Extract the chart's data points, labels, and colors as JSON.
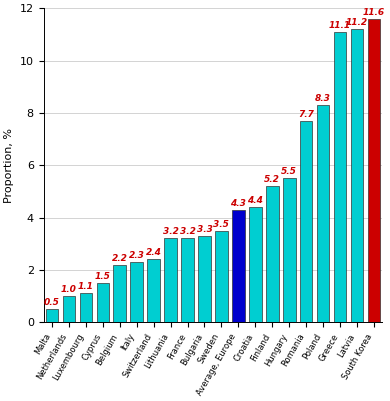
{
  "categories": [
    "Malta",
    "Netherlands",
    "Luxembourg",
    "Cyprus",
    "Belgium",
    "Italy",
    "Switzerland",
    "Lithuania",
    "France",
    "Bulgaria",
    "Sweden",
    "Average, Europe",
    "Croatia",
    "Finland",
    "Hungary",
    "Romania",
    "Poland",
    "Greece",
    "Latvia",
    "South Korea"
  ],
  "values": [
    0.5,
    1.0,
    1.1,
    1.5,
    2.2,
    2.3,
    2.4,
    3.2,
    3.2,
    3.3,
    3.5,
    4.3,
    4.4,
    5.2,
    5.5,
    7.7,
    8.3,
    11.1,
    11.2,
    11.6
  ],
  "bar_colors": [
    "#00CED1",
    "#00CED1",
    "#00CED1",
    "#00CED1",
    "#00CED1",
    "#00CED1",
    "#00CED1",
    "#00CED1",
    "#00CED1",
    "#00CED1",
    "#00CED1",
    "#0000CD",
    "#00CED1",
    "#00CED1",
    "#00CED1",
    "#00CED1",
    "#00CED1",
    "#00CED1",
    "#00CED1",
    "#CC0000"
  ],
  "value_labels": [
    "0.5",
    "1.0",
    "1.1",
    "1.5",
    "2.2",
    "2.3",
    "2.4",
    "3.2",
    "3.2",
    "3.3",
    "3.5",
    "4.3",
    "4.4",
    "5.2",
    "5.5",
    "7.7",
    "8.3",
    "11.1",
    "11.2",
    "11.6"
  ],
  "ylabel": "Proportion, %",
  "ylim": [
    0,
    12
  ],
  "yticks": [
    0,
    2,
    4,
    6,
    8,
    10,
    12
  ],
  "background_color": "#ffffff",
  "label_color": "#CC0000",
  "label_fontsize": 6.5,
  "bar_edge_color": "#333333",
  "bar_edge_width": 0.5,
  "bar_width": 0.75
}
